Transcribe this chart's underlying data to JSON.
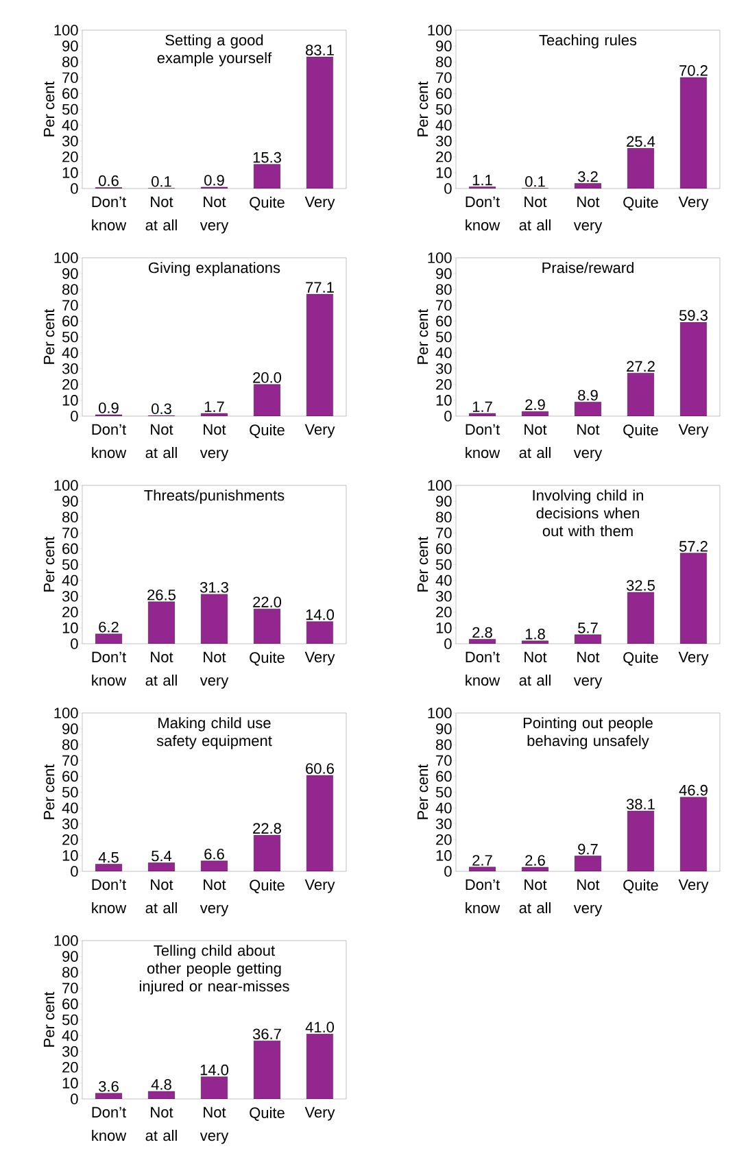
{
  "chart_data": [
    {
      "type": "bar",
      "title": "Setting a good example yourself",
      "ylabel": "Per cent",
      "categories": [
        "Don’t know",
        "Not at all",
        "Not very",
        "Quite",
        "Very"
      ],
      "values": [
        0.6,
        0.1,
        0.9,
        15.3,
        83.1
      ],
      "value_labels": [
        "0.6",
        "0.1",
        "0.9",
        "15.3",
        "83.1"
      ],
      "color": "#93278f",
      "ylim": [
        0,
        100
      ],
      "yticks": [
        0,
        10,
        20,
        30,
        40,
        50,
        60,
        70,
        80,
        90,
        100
      ]
    },
    {
      "type": "bar",
      "title": "Teaching rules",
      "ylabel": "Per cent",
      "categories": [
        "Don’t know",
        "Not at all",
        "Not very",
        "Quite",
        "Very"
      ],
      "values": [
        1.1,
        0.1,
        3.2,
        25.4,
        70.2
      ],
      "value_labels": [
        "1.1",
        "0.1",
        "3.2",
        "25.4",
        "70.2"
      ],
      "color": "#93278f",
      "ylim": [
        0,
        100
      ],
      "yticks": [
        0,
        10,
        20,
        30,
        40,
        50,
        60,
        70,
        80,
        90,
        100
      ]
    },
    {
      "type": "bar",
      "title": "Giving explanations",
      "ylabel": "Per cent",
      "categories": [
        "Don’t know",
        "Not at all",
        "Not very",
        "Quite",
        "Very"
      ],
      "values": [
        0.9,
        0.3,
        1.7,
        20,
        77.1
      ],
      "value_labels": [
        "0.9",
        "0.3",
        "1.7",
        "20.0",
        "77.1"
      ],
      "color": "#93278f",
      "ylim": [
        0,
        100
      ],
      "yticks": [
        0,
        10,
        20,
        30,
        40,
        50,
        60,
        70,
        80,
        90,
        100
      ]
    },
    {
      "type": "bar",
      "title": "Praise/reward",
      "ylabel": "Per cent",
      "categories": [
        "Don’t know",
        "Not at all",
        "Not very",
        "Quite",
        "Very"
      ],
      "values": [
        1.7,
        2.9,
        8.9,
        27.2,
        59.3
      ],
      "value_labels": [
        "1.7",
        "2.9",
        "8.9",
        "27.2",
        "59.3"
      ],
      "color": "#93278f",
      "ylim": [
        0,
        100
      ],
      "yticks": [
        0,
        10,
        20,
        30,
        40,
        50,
        60,
        70,
        80,
        90,
        100
      ]
    },
    {
      "type": "bar",
      "title": "Threats/punishments",
      "ylabel": "Per cent",
      "categories": [
        "Don’t know",
        "Not at all",
        "Not very",
        "Quite",
        "Very"
      ],
      "values": [
        6.2,
        26.5,
        31.3,
        22,
        14
      ],
      "value_labels": [
        "6.2",
        "26.5",
        "31.3",
        "22.0",
        "14.0"
      ],
      "color": "#93278f",
      "ylim": [
        0,
        100
      ],
      "yticks": [
        0,
        10,
        20,
        30,
        40,
        50,
        60,
        70,
        80,
        90,
        100
      ]
    },
    {
      "type": "bar",
      "title": "Involving child in decisions when out with them",
      "ylabel": "Per cent",
      "categories": [
        "Don’t know",
        "Not at all",
        "Not very",
        "Quite",
        "Very"
      ],
      "values": [
        2.8,
        1.8,
        5.7,
        32.5,
        57.2
      ],
      "value_labels": [
        "2.8",
        "1.8",
        "5.7",
        "32.5",
        "57.2"
      ],
      "color": "#93278f",
      "ylim": [
        0,
        100
      ],
      "yticks": [
        0,
        10,
        20,
        30,
        40,
        50,
        60,
        70,
        80,
        90,
        100
      ]
    },
    {
      "type": "bar",
      "title": "Making child use safety equipment",
      "ylabel": "Per cent",
      "categories": [
        "Don’t know",
        "Not at all",
        "Not very",
        "Quite",
        "Very"
      ],
      "values": [
        4.5,
        5.4,
        6.6,
        22.8,
        60.6
      ],
      "value_labels": [
        "4.5",
        "5.4",
        "6.6",
        "22.8",
        "60.6"
      ],
      "color": "#93278f",
      "ylim": [
        0,
        100
      ],
      "yticks": [
        0,
        10,
        20,
        30,
        40,
        50,
        60,
        70,
        80,
        90,
        100
      ]
    },
    {
      "type": "bar",
      "title": "Pointing out people behaving unsafely",
      "ylabel": "Per cent",
      "categories": [
        "Don’t know",
        "Not at all",
        "Not very",
        "Quite",
        "Very"
      ],
      "values": [
        2.7,
        2.6,
        9.7,
        38.1,
        46.9
      ],
      "value_labels": [
        "2.7",
        "2.6",
        "9.7",
        "38.1",
        "46.9"
      ],
      "color": "#93278f",
      "ylim": [
        0,
        100
      ],
      "yticks": [
        0,
        10,
        20,
        30,
        40,
        50,
        60,
        70,
        80,
        90,
        100
      ]
    },
    {
      "type": "bar",
      "title": "Telling child about other people getting injured or near-misses",
      "ylabel": "Per cent",
      "categories": [
        "Don’t know",
        "Not at all",
        "Not very",
        "Quite",
        "Very"
      ],
      "values": [
        3.6,
        4.8,
        14,
        36.7,
        41
      ],
      "value_labels": [
        "3.6",
        "4.8",
        "14.0",
        "36.7",
        "41.0"
      ],
      "color": "#93278f",
      "ylim": [
        0,
        100
      ],
      "yticks": [
        0,
        10,
        20,
        30,
        40,
        50,
        60,
        70,
        80,
        90,
        100
      ]
    }
  ]
}
